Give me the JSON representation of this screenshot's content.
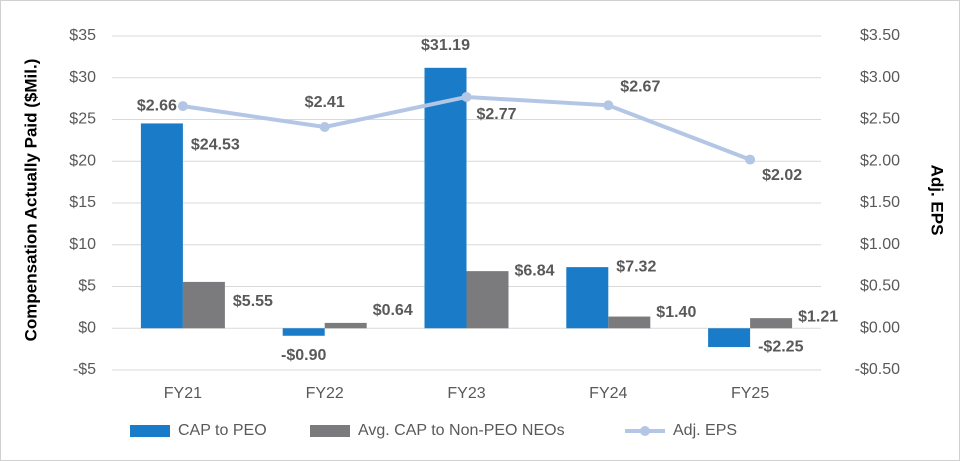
{
  "chart_data": {
    "type": "bar_line",
    "categories": [
      "FY21",
      "FY22",
      "FY23",
      "FY24",
      "FY25"
    ],
    "ylabel": "Compensation Actually Paid ($Mil.)",
    "y2label": "Adj. EPS",
    "ylim": [
      -5,
      35
    ],
    "yticks": [
      {
        "value": -5,
        "label": "-$5"
      },
      {
        "value": 0,
        "label": "$0"
      },
      {
        "value": 5,
        "label": "$5"
      },
      {
        "value": 10,
        "label": "$10"
      },
      {
        "value": 15,
        "label": "$15"
      },
      {
        "value": 20,
        "label": "$20"
      },
      {
        "value": 25,
        "label": "$25"
      },
      {
        "value": 30,
        "label": "$30"
      },
      {
        "value": 35,
        "label": "$35"
      }
    ],
    "y2lim": [
      -0.5,
      3.5
    ],
    "y2ticks": [
      {
        "value": -0.5,
        "label": "-$0.50"
      },
      {
        "value": 0,
        "label": "$0.00"
      },
      {
        "value": 0.5,
        "label": "$0.50"
      },
      {
        "value": 1,
        "label": "$1.00"
      },
      {
        "value": 1.5,
        "label": "$1.50"
      },
      {
        "value": 2,
        "label": "$2.00"
      },
      {
        "value": 2.5,
        "label": "$2.50"
      },
      {
        "value": 3,
        "label": "$3.00"
      },
      {
        "value": 3.5,
        "label": "$3.50"
      }
    ],
    "grid": true,
    "legend": "bottom",
    "series": [
      {
        "name": "CAP to PEO",
        "type": "bar",
        "color": "#1a7cc8",
        "values": [
          24.53,
          -0.9,
          31.19,
          7.32,
          -2.25
        ],
        "value_labels": [
          "$24.53",
          "-$0.90",
          "$31.19",
          "$7.32",
          "-$2.25"
        ]
      },
      {
        "name": "Avg. CAP to Non-PEO NEOs",
        "type": "bar",
        "color": "#7b7b7d",
        "values": [
          5.55,
          0.64,
          6.84,
          1.4,
          1.21
        ],
        "value_labels": [
          "$5.55",
          "$0.64",
          "$6.84",
          "$1.40",
          "$1.21"
        ]
      },
      {
        "name": "Adj. EPS",
        "type": "line",
        "axis": "y2",
        "color": "#b4c6e5",
        "values": [
          2.66,
          2.41,
          2.77,
          2.67,
          2.02
        ],
        "value_labels": [
          "$2.66",
          "$2.41",
          "$2.77",
          "$2.67",
          "$2.02"
        ]
      }
    ]
  }
}
